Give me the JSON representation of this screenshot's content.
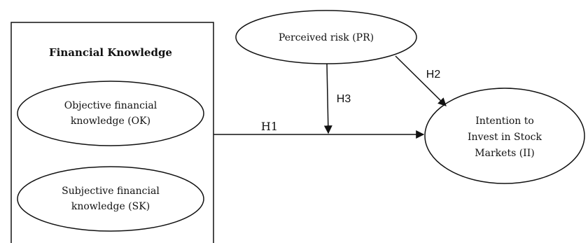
{
  "diagram": {
    "group_box": {
      "title": "Financial Knowledge"
    },
    "nodes": {
      "objective": {
        "line1": "Objective financial",
        "line2": "knowledge (OK)"
      },
      "subjective": {
        "line1": "Subjective financial",
        "line2": "knowledge (SK)"
      },
      "perceived_risk": {
        "label": "Perceived risk (PR)"
      },
      "intention": {
        "line1": "Intention to",
        "line2": "Invest in Stock",
        "line3": "Markets (II)"
      }
    },
    "hypotheses": {
      "h1": "H1",
      "h2": "H2",
      "h3": "H3"
    }
  }
}
